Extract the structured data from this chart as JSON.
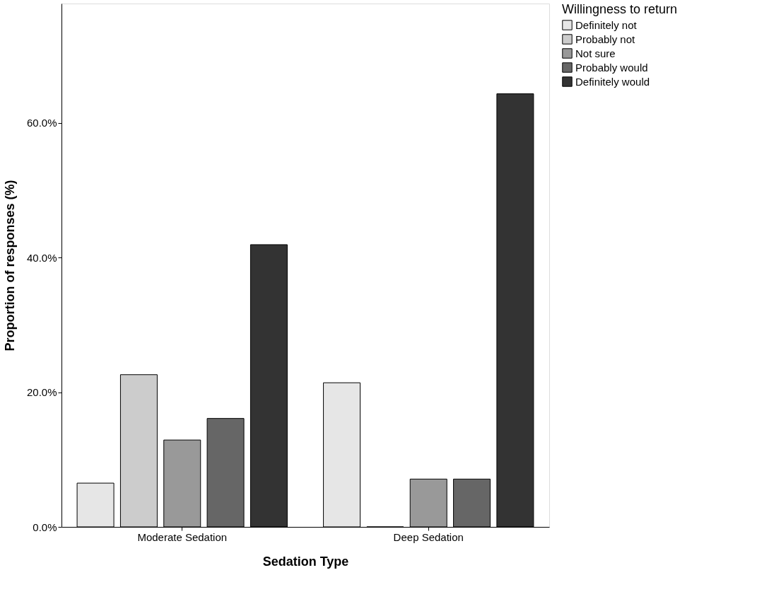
{
  "chart_data": {
    "type": "bar",
    "xlabel": "Sedation Type",
    "ylabel": "Proportion of responses (%)",
    "legend_title": "Willingness to return",
    "legend": "top right",
    "grid": false,
    "categories": [
      "Moderate Sedation",
      "Deep Sedation"
    ],
    "series": [
      {
        "name": "Definitely not",
        "color": "#e6e6e6",
        "values": [
          6.5,
          21.4
        ]
      },
      {
        "name": "Probably not",
        "color": "#cccccc",
        "values": [
          22.6,
          0
        ]
      },
      {
        "name": "Not sure",
        "color": "#999999",
        "values": [
          12.9,
          7.1
        ]
      },
      {
        "name": "Probably would",
        "color": "#666666",
        "values": [
          16.1,
          7.1
        ]
      },
      {
        "name": "Definitely would",
        "color": "#333333",
        "values": [
          41.9,
          64.3
        ]
      }
    ],
    "ylim": [
      0,
      77.7
    ],
    "yticks": [
      {
        "value": 0,
        "label": "0.0%"
      },
      {
        "value": 20,
        "label": "20.0%"
      },
      {
        "value": 40,
        "label": "40.0%"
      },
      {
        "value": 60,
        "label": "60.0%"
      }
    ]
  }
}
